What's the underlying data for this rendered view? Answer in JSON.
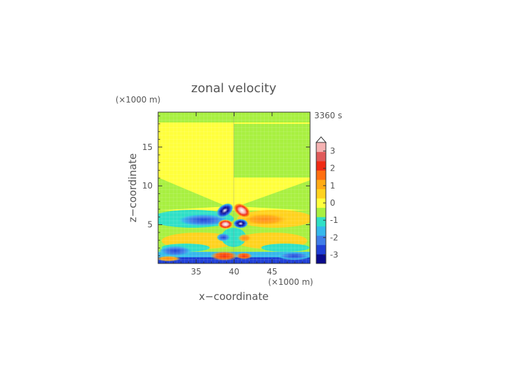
{
  "chart_data": {
    "type": "heatmap",
    "title": "zonal velocity",
    "time_label": "3360 s",
    "xlabel": "x−coordinate",
    "ylabel": "z−coordinate",
    "x_unit": "(×1000 m)",
    "y_unit": "(×1000 m)",
    "xlim": [
      30,
      50
    ],
    "ylim": [
      0,
      19.5
    ],
    "x_ticks": [
      35,
      40,
      45
    ],
    "y_ticks": [
      5,
      10,
      15
    ],
    "colorbar": {
      "ticks": [
        3,
        2,
        1,
        0,
        -1,
        -2,
        -3
      ],
      "range": [
        -3.5,
        3.5
      ],
      "extend_top": true,
      "colors": [
        "#0a0a8c",
        "#1f3fd6",
        "#3f7de8",
        "#35b8ec",
        "#2fe0c6",
        "#a8f040",
        "#ffff3c",
        "#ffd21e",
        "#ffaa14",
        "#ff6e10",
        "#f02a14",
        "#e05a5a",
        "#f5b2b2"
      ]
    },
    "features": [
      {
        "name": "upper-level westward jet",
        "x_range": [
          31,
          39
        ],
        "z": 6.0,
        "value": -1.6
      },
      {
        "name": "upper-level eastward jet",
        "x_range": [
          41,
          48
        ],
        "z": 6.0,
        "value": 1.1
      },
      {
        "name": "vortex pair left",
        "x": 38.7,
        "z": 7.3,
        "value": -3.5
      },
      {
        "name": "vortex pair right",
        "x": 41.3,
        "z": 7.3,
        "value": 3.5
      },
      {
        "name": "near-surface jet",
        "x": 38.8,
        "z": 0.9,
        "value": 3.0
      }
    ]
  }
}
